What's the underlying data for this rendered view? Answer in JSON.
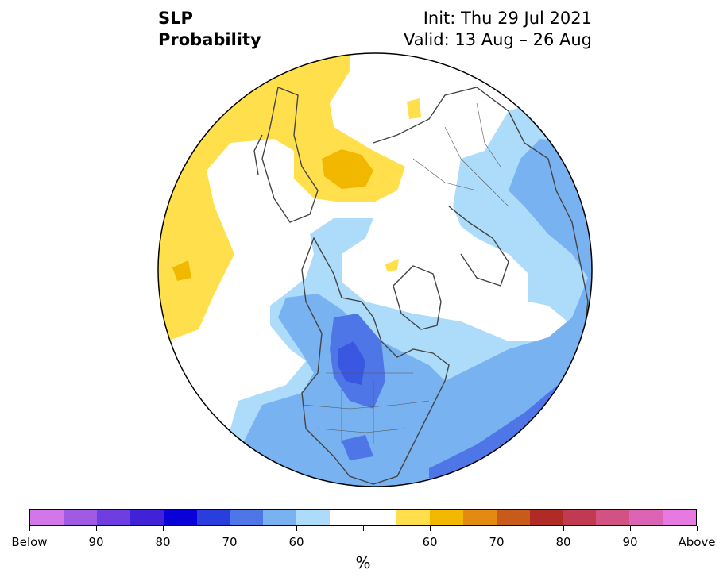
{
  "header": {
    "title_line1": "SLP",
    "title_line2": "Probability",
    "init": "Init: Thu 29 Jul 2021",
    "valid": "Valid: 13 Aug – 26 Aug"
  },
  "map": {
    "projection": "north-polar-stereographic",
    "variable": "SLP",
    "categories": [
      "below-normal",
      "near-normal",
      "above-normal"
    ]
  },
  "colorbar": {
    "unit": "%",
    "colors": [
      "#d276ea",
      "#a15ae4",
      "#6e3ee0",
      "#4122d8",
      "#0a00d8",
      "#2a3ede",
      "#4e76e6",
      "#78b2f0",
      "#acdcfa",
      "#ffffff",
      "#ffffff",
      "#ffe04c",
      "#f2b800",
      "#e28a12",
      "#c85a1a",
      "#b02a26",
      "#c23a52",
      "#d25284",
      "#dc64b4",
      "#e67ae0"
    ],
    "labels": [
      "Below",
      "90",
      "80",
      "70",
      "60",
      "60",
      "70",
      "80",
      "90",
      "Above"
    ]
  }
}
